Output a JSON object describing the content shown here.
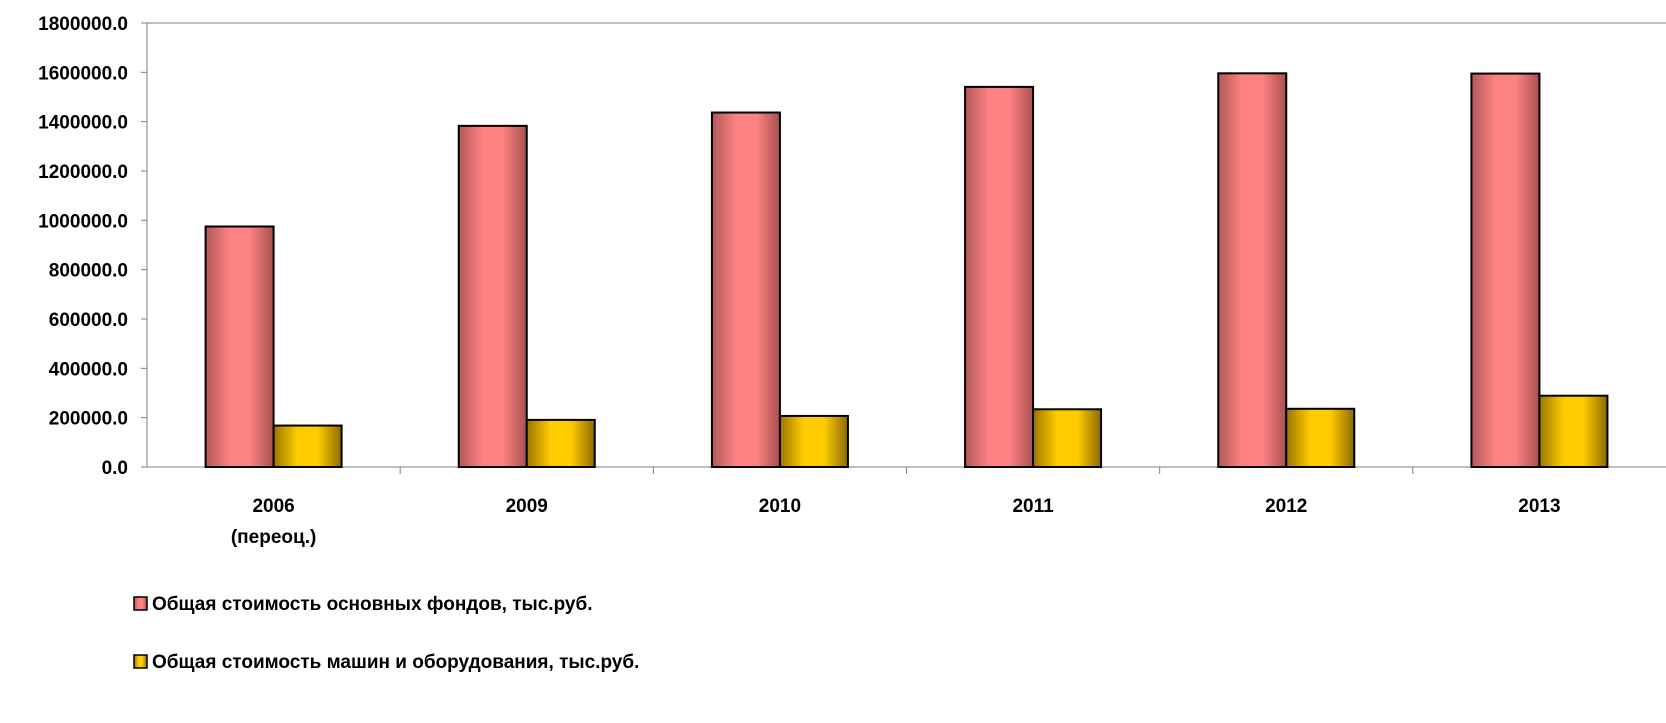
{
  "chart_data": {
    "type": "bar",
    "categories": [
      [
        "2006",
        "(переоц.)"
      ],
      [
        "2009"
      ],
      [
        "2010"
      ],
      [
        "2011"
      ],
      [
        "2012"
      ],
      [
        "2013"
      ]
    ],
    "series": [
      {
        "name": "Общая стоимость основных фондов, тыс.руб.",
        "color": "#f27d7d",
        "values": [
          975000,
          1383000,
          1437000,
          1541000,
          1596000,
          1595000
        ]
      },
      {
        "name": "Общая стоимость машин и оборудования, тыс.руб.",
        "color": "#f5c400",
        "values": [
          168000,
          191000,
          207000,
          234000,
          236000,
          289000
        ]
      }
    ],
    "ylim": [
      0,
      1800000
    ],
    "yticks": [
      "0.0",
      "200000.0",
      "400000.0",
      "600000.0",
      "800000.0",
      "1000000.0",
      "1200000.0",
      "1400000.0",
      "1600000.0",
      "1800000.0"
    ],
    "grid": false,
    "legend_position": "bottom-left"
  }
}
